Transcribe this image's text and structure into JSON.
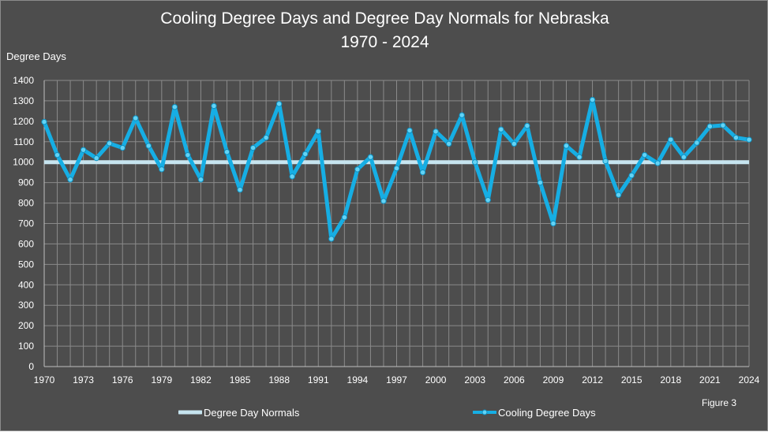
{
  "chart_data": {
    "type": "line",
    "title": "Cooling Degree Days and Degree Day Normals for Nebraska",
    "subtitle": "1970 - 2024",
    "ylabel": "Degree Days",
    "xlabel": "",
    "ylim": [
      0,
      1400
    ],
    "y_ticks": [
      0,
      100,
      200,
      300,
      400,
      500,
      600,
      700,
      800,
      900,
      1000,
      1100,
      1200,
      1300,
      1400
    ],
    "x_tick_labels": [
      "1970",
      "1973",
      "1976",
      "1979",
      "1982",
      "1985",
      "1988",
      "1991",
      "1994",
      "1997",
      "2000",
      "2003",
      "2006",
      "2009",
      "2012",
      "2015",
      "2018",
      "2021",
      "2024"
    ],
    "grid": true,
    "legend_position": "bottom",
    "x": [
      1970,
      1971,
      1972,
      1973,
      1974,
      1975,
      1976,
      1977,
      1978,
      1979,
      1980,
      1981,
      1982,
      1983,
      1984,
      1985,
      1986,
      1987,
      1988,
      1989,
      1990,
      1991,
      1992,
      1993,
      1994,
      1995,
      1996,
      1997,
      1998,
      1999,
      2000,
      2001,
      2002,
      2003,
      2004,
      2005,
      2006,
      2007,
      2008,
      2009,
      2010,
      2011,
      2012,
      2013,
      2014,
      2015,
      2016,
      2017,
      2018,
      2019,
      2020,
      2021,
      2022,
      2023,
      2024
    ],
    "series": [
      {
        "name": "Degree Day Normals",
        "color": "#c6e4ef",
        "values": [
          1000,
          1000,
          1000,
          1000,
          1000,
          1000,
          1000,
          1000,
          1000,
          1000,
          1000,
          1000,
          1000,
          1000,
          1000,
          1000,
          1000,
          1000,
          1000,
          1000,
          1000,
          1000,
          1000,
          1000,
          1000,
          1000,
          1000,
          1000,
          1000,
          1000,
          1000,
          1000,
          1000,
          1000,
          1000,
          1000,
          1000,
          1000,
          1000,
          1000,
          1000,
          1000,
          1000,
          1000,
          1000,
          1000,
          1000,
          1000,
          1000,
          1000,
          1000,
          1000,
          1000,
          1000,
          1000
        ]
      },
      {
        "name": "Cooling Degree Days",
        "color": "#16aee4",
        "values": [
          1197,
          1035,
          915,
          1060,
          1020,
          1092,
          1070,
          1215,
          1080,
          965,
          1270,
          1035,
          915,
          1275,
          1050,
          865,
          1070,
          1120,
          1285,
          930,
          1040,
          1150,
          625,
          730,
          965,
          1025,
          810,
          970,
          1155,
          950,
          1150,
          1090,
          1230,
          1000,
          815,
          1160,
          1090,
          1178,
          900,
          700,
          1080,
          1025,
          1305,
          1005,
          840,
          935,
          1035,
          995,
          1110,
          1025,
          1095,
          1175,
          1180,
          1120,
          1110
        ]
      }
    ]
  },
  "legend": {
    "normals_label": "Degree Day Normals",
    "cdd_label": "Cooling Degree Days"
  },
  "figure_label": "Figure 3"
}
